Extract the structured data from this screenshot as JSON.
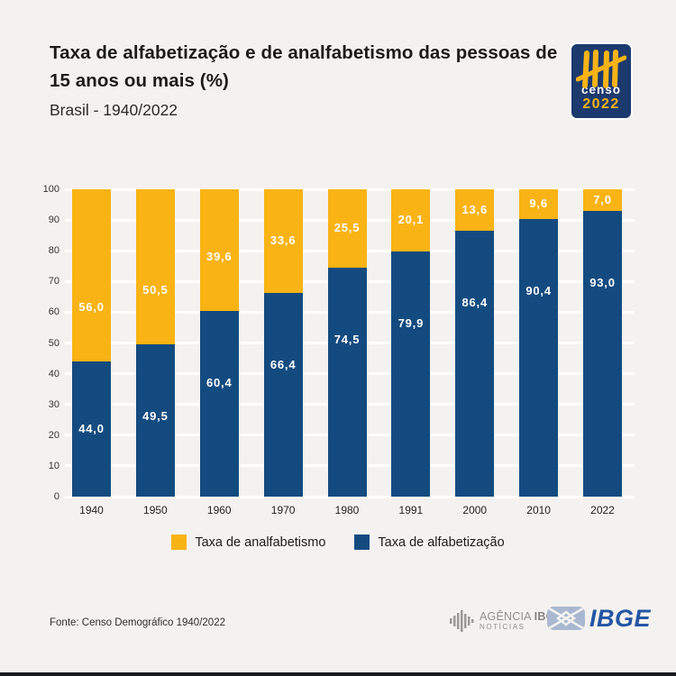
{
  "page": {
    "background": "#f4f2f0",
    "bottom_bar_color": "#171b20",
    "gridline_color": "#ffffff"
  },
  "header": {
    "title": "Taxa de alfabetização e de analfabetismo das pessoas de 15 anos ou mais (%)",
    "subtitle": "Brasil - 1940/2022"
  },
  "censo_logo": {
    "word": "censo",
    "year": "2022",
    "bg_color": "#1d3a6e",
    "accent_color": "#f9b314",
    "word_color": "#ffffff"
  },
  "chart_data": {
    "type": "bar",
    "stacked": true,
    "title": "Taxa de alfabetização e de analfabetismo das pessoas de 15 anos ou mais (%)",
    "subtitle": "Brasil - 1940/2022",
    "categories": [
      "1940",
      "1950",
      "1960",
      "1970",
      "1980",
      "1991",
      "2000",
      "2010",
      "2022"
    ],
    "series": [
      {
        "name": "Taxa de alfabetização",
        "color": "#134b80",
        "values": [
          44.0,
          49.5,
          60.4,
          66.4,
          74.5,
          79.9,
          86.4,
          90.4,
          93.0
        ],
        "labels": [
          "44,0",
          "49,5",
          "60,4",
          "66,4",
          "74,5",
          "79,9",
          "86,4",
          "90,4",
          "93,0"
        ]
      },
      {
        "name": "Taxa de analfabetismo",
        "color": "#f9b314",
        "values": [
          56.0,
          50.5,
          39.6,
          33.6,
          25.5,
          20.1,
          13.6,
          9.6,
          7.0
        ],
        "labels": [
          "56,0",
          "50,5",
          "39,6",
          "33,6",
          "25,5",
          "20,1",
          "13,6",
          "9,6",
          "7,0"
        ]
      }
    ],
    "ylim": [
      0,
      100
    ],
    "yticks": [
      0,
      10,
      20,
      30,
      40,
      50,
      60,
      70,
      80,
      90,
      100
    ],
    "grid": true,
    "legend_position": "bottom"
  },
  "legend": {
    "items": [
      {
        "label": "Taxa de analfabetismo",
        "color": "#f9b314"
      },
      {
        "label": "Taxa de alfabetização",
        "color": "#134b80"
      }
    ]
  },
  "footer": {
    "source": "Fonte: Censo Demográfico 1940/2022",
    "agencia_logo": {
      "word1": "AGÊNCIA",
      "word2": "IBGE",
      "line2": "NOTÍCIAS",
      "color": "#8f8f8f"
    },
    "ibge_logo": {
      "text": "IBGE",
      "text_color": "#2456a4",
      "symbol_color": "#a9b8d0"
    }
  }
}
